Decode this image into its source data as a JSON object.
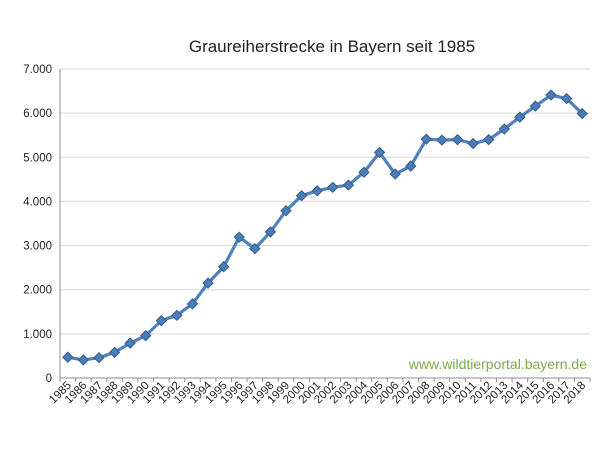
{
  "chart_data": {
    "type": "line",
    "title": "Graureiherstrecke in Bayern seit 1985",
    "xlabel": "",
    "ylabel": "",
    "categories": [
      "1985",
      "1986",
      "1987",
      "1988",
      "1989",
      "1990",
      "1991",
      "1992",
      "1993",
      "1994",
      "1995",
      "1996",
      "1997",
      "1998",
      "1999",
      "2000",
      "2001",
      "2002",
      "2003",
      "2004",
      "2005",
      "2006",
      "2007",
      "2008",
      "2009",
      "2010",
      "2011",
      "2012",
      "2013",
      "2014",
      "2015",
      "2016",
      "2017",
      "2018"
    ],
    "series": [
      {
        "values": [
          470,
          410,
          460,
          580,
          790,
          960,
          1300,
          1420,
          1680,
          2150,
          2520,
          3190,
          2930,
          3310,
          3790,
          4130,
          4240,
          4320,
          4370,
          4660,
          5110,
          4620,
          4800,
          5410,
          5390,
          5400,
          5310,
          5400,
          5640,
          5910,
          6160,
          6410,
          6330,
          5990
        ],
        "color": "#4f81bd",
        "marker": "diamond"
      }
    ],
    "ylim": [
      0,
      7000
    ],
    "yticks": [
      "0",
      "1.000",
      "2.000",
      "3.000",
      "4.000",
      "5.000",
      "6.000",
      "7.000"
    ],
    "ytick_values": [
      0,
      1000,
      2000,
      3000,
      4000,
      5000,
      6000,
      7000
    ],
    "grid": "horizontal",
    "legend": "none",
    "annotation": {
      "text": "www.wildtierportal.bayern.de",
      "color": "#77ad45"
    },
    "colors": {
      "line": "#4f81bd",
      "marker_fill": "#4a7ebb",
      "marker_stroke": "#385d8a",
      "grid": "#d9d9d9",
      "axis": "#8c8c8c",
      "text": "#1f1f1f"
    }
  }
}
